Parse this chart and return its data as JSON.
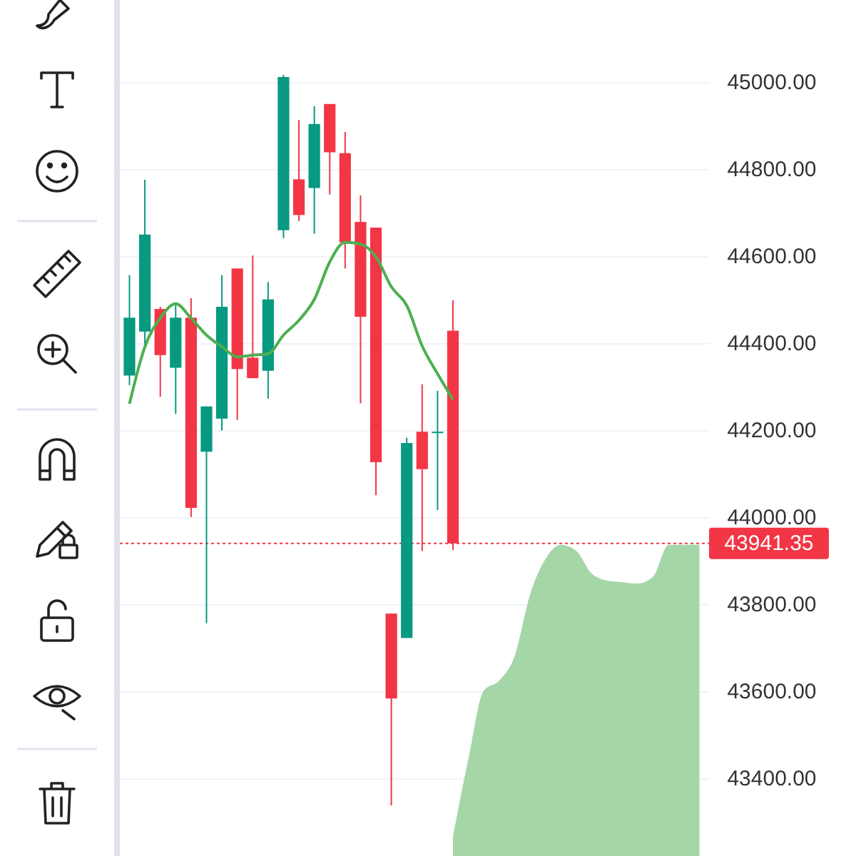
{
  "chart_data": {
    "type": "candlestick",
    "categories": [
      null,
      null,
      null,
      null,
      null,
      null,
      null,
      null,
      null,
      null,
      null,
      null,
      null,
      null,
      null,
      null,
      null,
      null,
      null,
      null,
      null,
      null,
      null,
      null,
      null,
      null,
      null,
      null,
      null,
      null,
      null,
      null,
      null,
      null,
      null,
      null,
      null,
      null
    ],
    "ohlc": [
      [
        44327,
        44558,
        44305,
        44460
      ],
      [
        44428,
        44777,
        44392,
        44651
      ],
      [
        44480,
        44485,
        44278,
        44374
      ],
      [
        44345,
        44493,
        44239,
        44460
      ],
      [
        44460,
        44505,
        44002,
        44023
      ],
      [
        44152,
        44256,
        43758,
        44256
      ],
      [
        44228,
        44558,
        44201,
        44485
      ],
      [
        44573,
        44573,
        44225,
        44342
      ],
      [
        44368,
        44603,
        44321,
        44321
      ],
      [
        44338,
        44542,
        44274,
        44502
      ],
      [
        44661,
        45018,
        44643,
        45013
      ],
      [
        44778,
        44914,
        44682,
        44696
      ],
      [
        44758,
        44946,
        44653,
        44905
      ],
      [
        44951,
        44951,
        44743,
        44840
      ],
      [
        44838,
        44887,
        44573,
        44633
      ],
      [
        44680,
        44741,
        44263,
        44462
      ],
      [
        44667,
        44667,
        44052,
        44128
      ],
      [
        43780,
        43780,
        43339,
        43585
      ],
      [
        43724,
        44184,
        43724,
        44172
      ],
      [
        44198,
        44307,
        43924,
        44112
      ],
      [
        44198,
        44292,
        44018,
        44198
      ],
      [
        44430,
        44500,
        43926,
        43941.35
      ],
      null,
      null,
      null,
      null,
      null,
      null,
      null,
      null,
      null,
      null,
      null,
      null,
      null,
      null,
      null,
      null
    ],
    "colors": [
      "#089981",
      "#089981",
      "#f23645",
      "#089981",
      "#f23645",
      "#089981",
      "#089981",
      "#f23645",
      "#f23645",
      "#089981",
      "#089981",
      "#f23645",
      "#089981",
      "#f23645",
      "#f23645",
      "#f23645",
      "#f23645",
      "#f23645",
      "#089981",
      "#f23645",
      "#089981",
      "#f23645",
      null,
      null,
      null,
      null,
      null,
      null,
      null,
      null,
      null,
      null,
      null,
      null,
      null,
      null,
      null,
      null
    ],
    "series": [
      {
        "type": "line",
        "color": "#4caf50",
        "values": [
          44262,
          44393,
          44459,
          44492,
          44459,
          44420,
          44393,
          44370,
          44374,
          44377,
          44420,
          44454,
          44502,
          44588,
          44633,
          44629,
          44600,
          44531,
          44488,
          44395,
          44331,
          44272,
          null,
          null,
          null,
          null,
          null,
          null,
          null,
          null,
          null,
          null,
          null,
          null,
          null,
          null,
          null,
          null
        ]
      },
      {
        "type": "area",
        "color": "#a5d6a7",
        "values": [
          null,
          null,
          null,
          null,
          null,
          null,
          null,
          null,
          null,
          null,
          null,
          null,
          null,
          null,
          null,
          null,
          null,
          null,
          null,
          null,
          null,
          43269,
          43446,
          43603,
          43626,
          43682,
          43823,
          43905,
          43938,
          43924,
          43872,
          43856,
          43852,
          43849,
          43865,
          43938,
          43938,
          43938
        ]
      }
    ],
    "ylim": [
      43223,
      45190
    ],
    "yticks": [
      {
        "value": 43400,
        "label": "43400.00"
      },
      {
        "value": 43600,
        "label": "43600.00"
      },
      {
        "value": 43800,
        "label": "43800.00"
      },
      {
        "value": 44000,
        "label": "44000.00"
      },
      {
        "value": 44200,
        "label": "44200.00"
      },
      {
        "value": 44400,
        "label": "44400.00"
      },
      {
        "value": 44600,
        "label": "44600.00"
      },
      {
        "value": 44800,
        "label": "44800.00"
      },
      {
        "value": 45000,
        "label": "45000.00"
      }
    ],
    "ref_lines": [
      {
        "axis": "y",
        "value": 43941.35,
        "label": "43941.35",
        "color": "#f23645",
        "line_style": "dotted"
      }
    ],
    "grid": "y",
    "tick_labels": "y"
  }
}
